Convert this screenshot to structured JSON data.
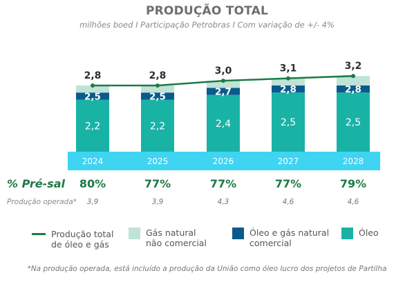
{
  "title": "PRODUÇÃO TOTAL",
  "subtitle": "milhões boed I Participação Petrobras I Com variação de +/- 4%",
  "chart_data": {
    "type": "bar",
    "stacked": true,
    "categories": [
      "2024",
      "2025",
      "2026",
      "2027",
      "2028"
    ],
    "series": [
      {
        "name": "Óleo",
        "values": [
          2.2,
          2.2,
          2.4,
          2.5,
          2.5
        ],
        "color": "#19b3a6"
      },
      {
        "name": "Óleo e gás natural comercial",
        "values": [
          0.3,
          0.3,
          0.3,
          0.3,
          0.3
        ],
        "color": "#0a5a8c"
      },
      {
        "name": "Gás natural não comercial",
        "values": [
          0.3,
          0.3,
          0.3,
          0.3,
          0.4
        ],
        "color": "#bfe3d6"
      }
    ],
    "line": {
      "name": "Produção total de óleo e gás",
      "values": [
        2.8,
        2.8,
        3.0,
        3.1,
        3.2
      ],
      "color": "#1c7a45"
    },
    "labels": {
      "oleo": [
        "2,2",
        "2,2",
        "2,4",
        "2,5",
        "2,5"
      ],
      "oleo_gas_comercial": [
        "2,5",
        "2,5",
        "2,7",
        "2,8",
        "2,8"
      ],
      "total": [
        "2,8",
        "2,8",
        "3,0",
        "3,1",
        "3,2"
      ]
    },
    "axis_band_color": "#3fd4f2"
  },
  "presal": {
    "label": "% Pré-sal",
    "values": [
      "80%",
      "77%",
      "77%",
      "77%",
      "79%"
    ]
  },
  "operada": {
    "label": "Produção operada*",
    "values": [
      "3,9",
      "3,9",
      "4,3",
      "4,6",
      "4,6"
    ]
  },
  "legend": [
    {
      "text": "Produção total de óleo e gás"
    },
    {
      "text": "Gás natural não comercial"
    },
    {
      "text": "Óleo e gás natural comercial"
    },
    {
      "text": "Óleo"
    }
  ],
  "footnote": "*Na produção operada, está incluído a produção da União como óleo lucro dos projetos de Partilha"
}
